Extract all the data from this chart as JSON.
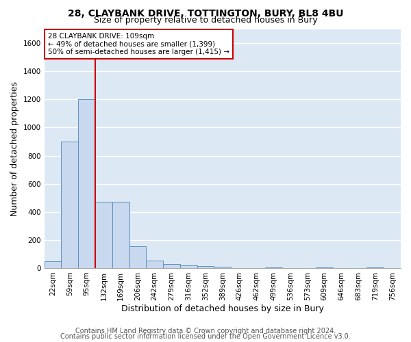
{
  "title1": "28, CLAYBANK DRIVE, TOTTINGTON, BURY, BL8 4BU",
  "title2": "Size of property relative to detached houses in Bury",
  "xlabel": "Distribution of detached houses by size in Bury",
  "ylabel": "Number of detached properties",
  "footer1": "Contains HM Land Registry data © Crown copyright and database right 2024.",
  "footer2": "Contains public sector information licensed under the Open Government Licence v3.0.",
  "annotation_line1": "28 CLAYBANK DRIVE: 109sqm",
  "annotation_line2": "← 49% of detached houses are smaller (1,399)",
  "annotation_line3": "50% of semi-detached houses are larger (1,415) →",
  "bar_labels": [
    "22sqm",
    "59sqm",
    "95sqm",
    "132sqm",
    "169sqm",
    "206sqm",
    "242sqm",
    "279sqm",
    "316sqm",
    "352sqm",
    "389sqm",
    "426sqm",
    "462sqm",
    "499sqm",
    "536sqm",
    "573sqm",
    "609sqm",
    "646sqm",
    "683sqm",
    "719sqm",
    "756sqm"
  ],
  "bar_values": [
    50,
    900,
    1200,
    470,
    470,
    155,
    55,
    30,
    20,
    15,
    10,
    0,
    0,
    5,
    0,
    0,
    5,
    0,
    0,
    5,
    0
  ],
  "bar_color": "#c8d8ee",
  "bar_edge_color": "#6090c0",
  "red_line_x": 2.5,
  "ylim": [
    0,
    1700
  ],
  "yticks": [
    0,
    200,
    400,
    600,
    800,
    1000,
    1200,
    1400,
    1600
  ],
  "bg_color": "#dce8f4",
  "grid_color": "#ffffff",
  "fig_bg_color": "#ffffff",
  "annotation_box_color": "#ffffff",
  "annotation_box_edge": "#cc0000",
  "title1_fontsize": 10,
  "title2_fontsize": 9,
  "axis_label_fontsize": 9,
  "tick_fontsize": 7.5,
  "footer_fontsize": 7
}
